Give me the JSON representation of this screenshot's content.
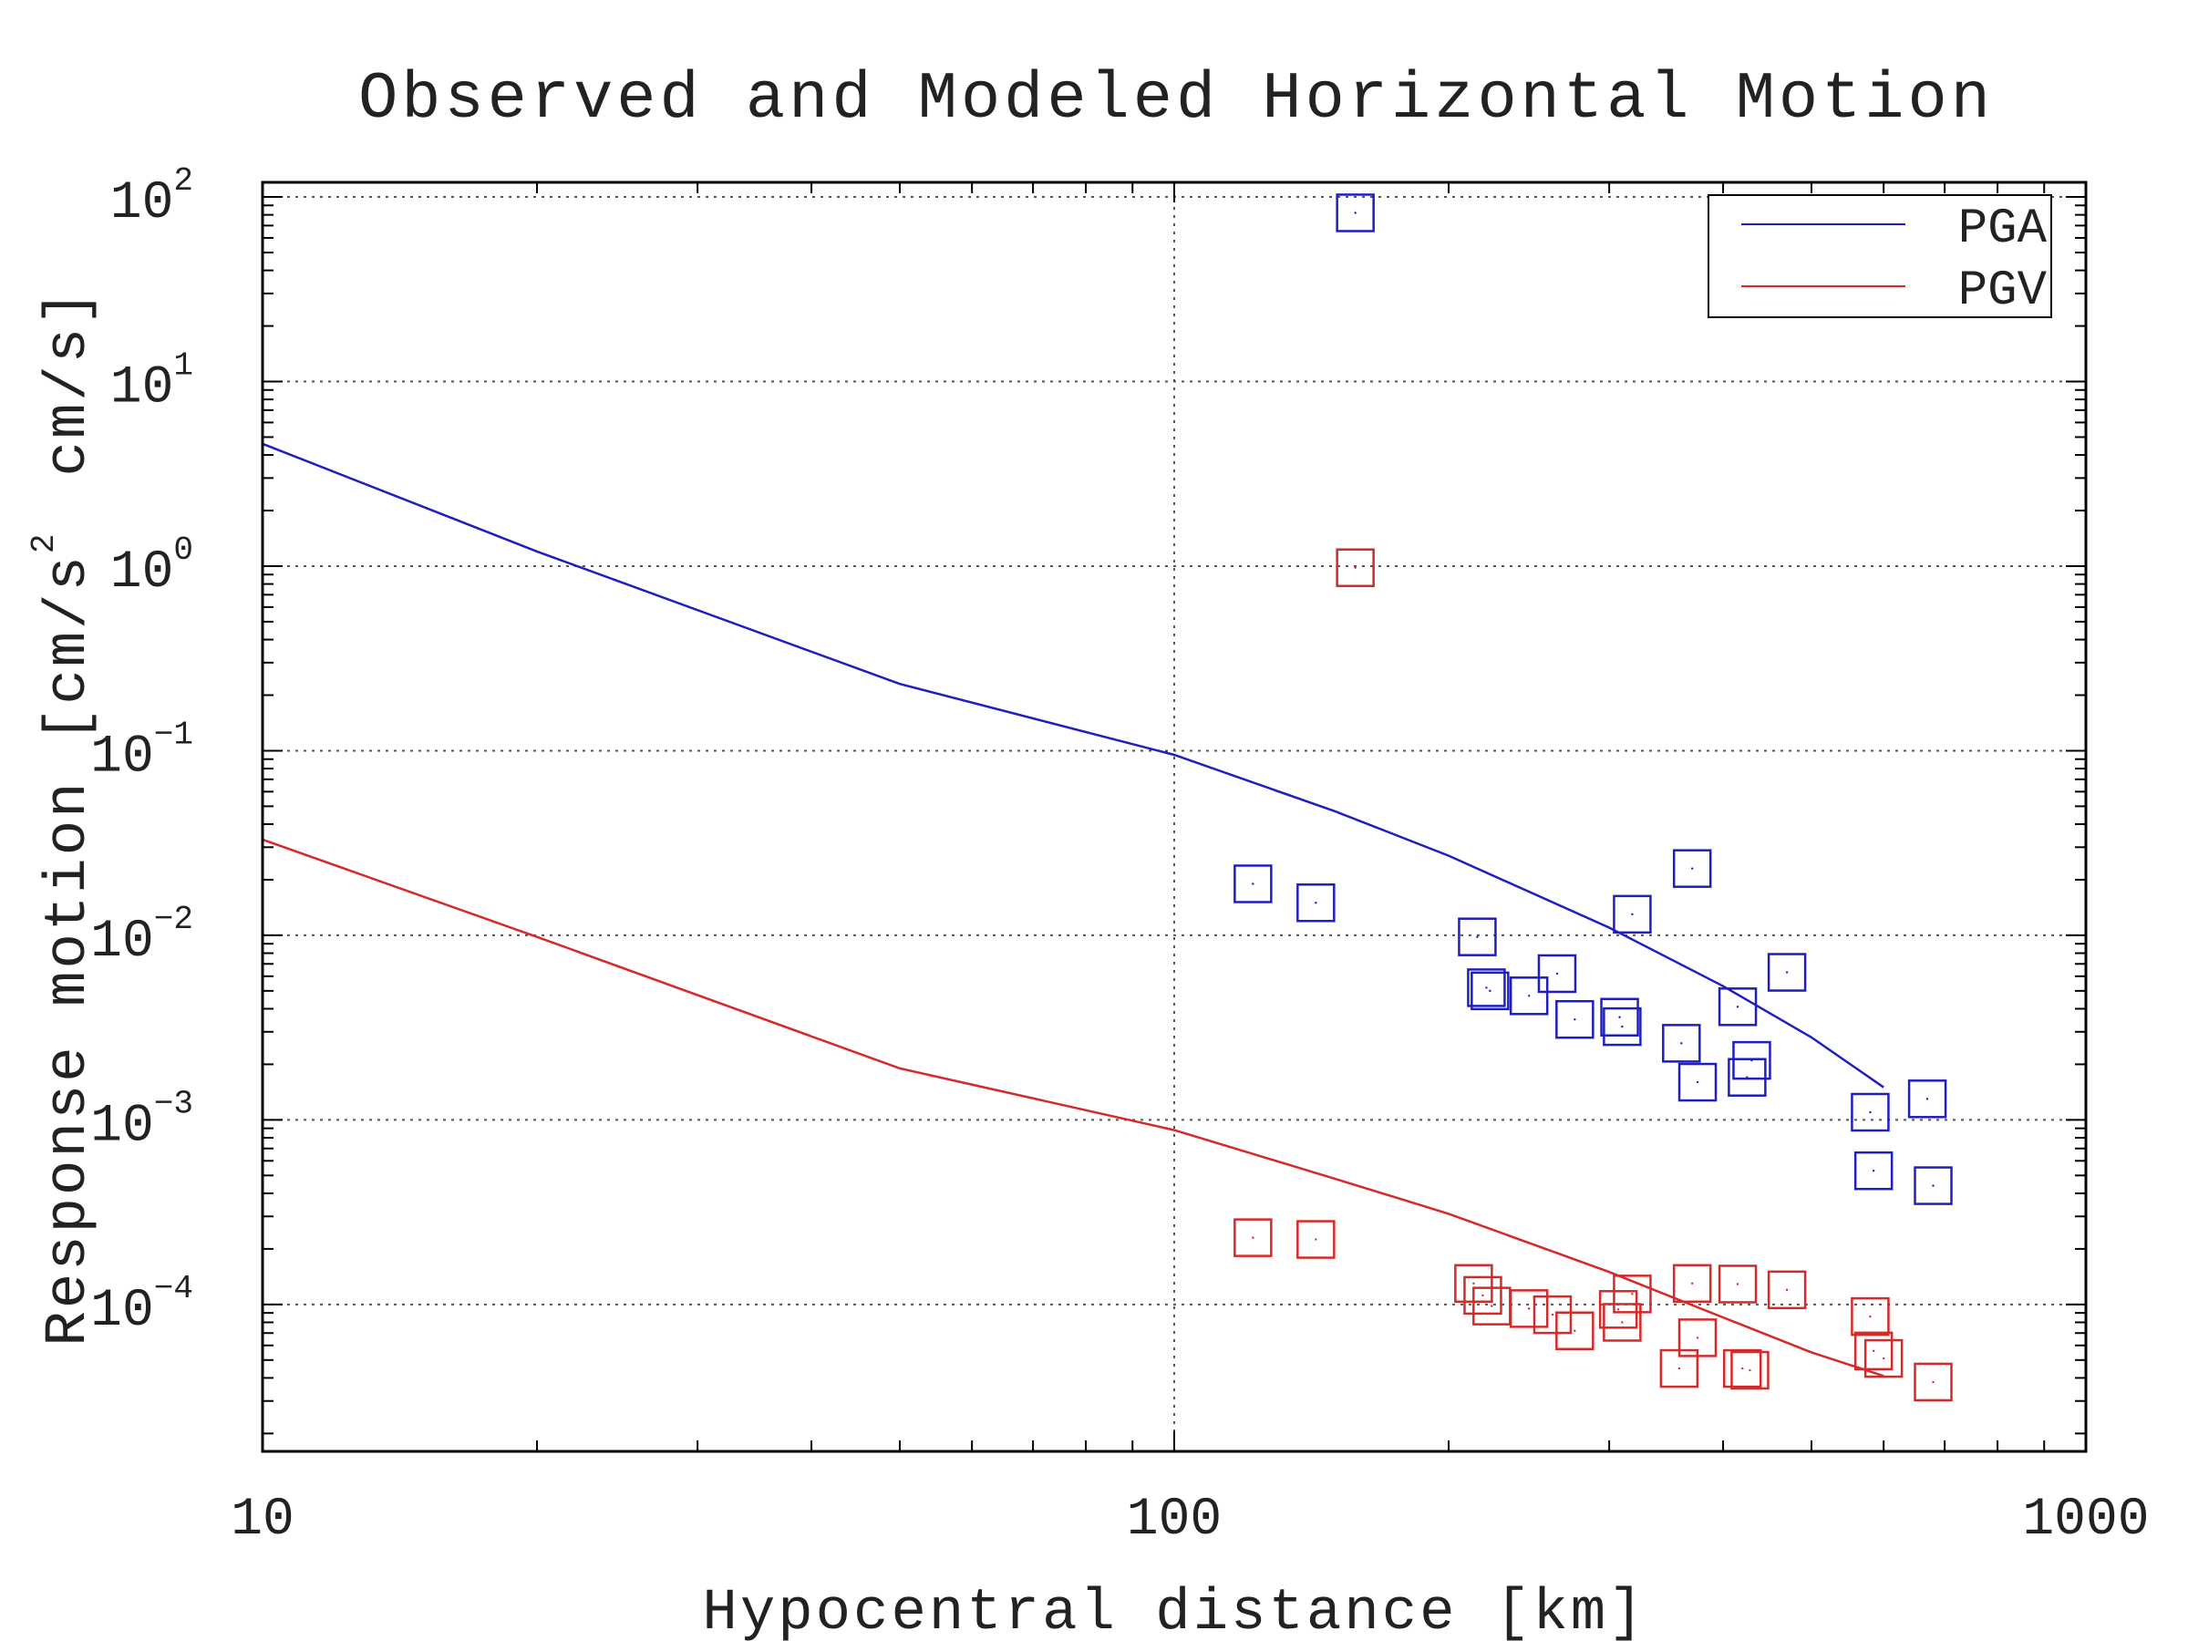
{
  "chart_data": {
    "type": "scatter",
    "title": "Observed and Modeled Horizontal Motion",
    "xlabel": "Hypocentral distance [km]",
    "ylabel": "Response motion [cm/s",
    "ylabel_sup": "2",
    "ylabel_tail": "cm/s]",
    "x_scale": "log",
    "y_scale": "log",
    "xlim": [
      10,
      1000
    ],
    "ylim": [
      1.6e-05,
      120
    ],
    "x_ticks": [
      {
        "value": 10,
        "label": "10"
      },
      {
        "value": 100,
        "label": "100"
      },
      {
        "value": 1000,
        "label": "1000"
      }
    ],
    "y_ticks": [
      {
        "value": 100,
        "base": "10",
        "exp": "2"
      },
      {
        "value": 10,
        "base": "10",
        "exp": "1"
      },
      {
        "value": 1,
        "base": "10",
        "exp": "0"
      },
      {
        "value": 0.1,
        "base": "10",
        "exp": "−1"
      },
      {
        "value": 0.01,
        "base": "10",
        "exp": "−2"
      },
      {
        "value": 0.001,
        "base": "10",
        "exp": "−3"
      },
      {
        "value": 0.0001,
        "base": "10",
        "exp": "−4"
      }
    ],
    "grid": true,
    "legend_position": "top-right",
    "series": [
      {
        "name": "PGA",
        "color": "#1f1fbf",
        "line": {
          "x": [
            10,
            20,
            50,
            100,
            150,
            200,
            300,
            400,
            500,
            600
          ],
          "y": [
            4.6,
            1.2,
            0.23,
            0.095,
            0.047,
            0.027,
            0.011,
            0.0053,
            0.0028,
            0.0015
          ]
        },
        "points": {
          "x": [
            158,
            122,
            143,
            215,
            220,
            222,
            245,
            263,
            275,
            308,
            310,
            318,
            360,
            370,
            375,
            415,
            425,
            430,
            470,
            580,
            585,
            670,
            680
          ],
          "y": [
            82,
            0.019,
            0.015,
            0.0098,
            0.0052,
            0.005,
            0.0047,
            0.0062,
            0.0035,
            0.0036,
            0.0032,
            0.013,
            0.0026,
            0.023,
            0.0016,
            0.0041,
            0.0017,
            0.0021,
            0.0063,
            0.0011,
            0.00053,
            0.0013,
            0.00044
          ]
        }
      },
      {
        "name": "PGV",
        "color": "#d42a2a",
        "line": {
          "x": [
            10,
            20,
            50,
            100,
            150,
            200,
            300,
            400,
            500,
            600
          ],
          "y": [
            0.033,
            0.0098,
            0.0019,
            0.00088,
            0.00048,
            0.00031,
            0.00015,
            8.5e-05,
            5.5e-05,
            4.1e-05
          ]
        },
        "points": {
          "x": [
            158,
            122,
            143,
            213,
            218,
            223,
            245,
            260,
            275,
            307,
            310,
            318,
            358,
            370,
            375,
            415,
            420,
            428,
            470,
            580,
            585,
            600,
            680
          ],
          "y": [
            0.98,
            0.00023,
            0.000225,
            0.00013,
            0.000112,
            9.8e-05,
            9.5e-05,
            8.8e-05,
            7.2e-05,
            9.4e-05,
            8e-05,
            0.000114,
            4.5e-05,
            0.00013,
            6.6e-05,
            0.000129,
            4.5e-05,
            4.4e-05,
            0.00012,
            8.6e-05,
            5.6e-05,
            5.1e-05,
            3.8e-05
          ]
        }
      }
    ]
  }
}
